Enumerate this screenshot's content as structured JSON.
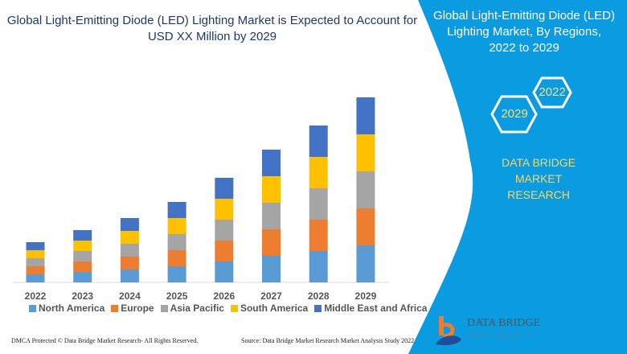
{
  "header": {
    "title_line1": "Global Light-Emitting Diode (LED) Lighting Market is Expected to Account for",
    "title_line2": "USD XX Million by 2029"
  },
  "panel": {
    "title_line1": "Global Light-Emitting Diode (LED)",
    "title_line2": "Lighting Market, By Regions,",
    "title_line3": "2022 to 2029",
    "hex_a": "2022",
    "hex_b": "2029",
    "brand_line1": "DATA BRIDGE MARKET",
    "brand_line2": "RESEARCH",
    "color": "#0a9be0"
  },
  "logo": {
    "name": "DATA BRIDGE",
    "sub": "MARKET RESEARCH"
  },
  "footer": {
    "dmca": "DMCA Protected © Data Bridge Market Research- All Rights Reserved.",
    "source": "Source: Data Bridge Market Research Market Analysis Study 2022"
  },
  "chart_data": {
    "type": "bar",
    "stacked": true,
    "grid": false,
    "legend_placement": "bottom",
    "categories": [
      "2022",
      "2023",
      "2024",
      "2025",
      "2026",
      "2027",
      "2028",
      "2029"
    ],
    "series": [
      {
        "name": "North America",
        "color": "#5b9bd5",
        "values": [
          10,
          13,
          16,
          20,
          26,
          33,
          39,
          46
        ]
      },
      {
        "name": "Europe",
        "color": "#ed7d31",
        "values": [
          10,
          13,
          16,
          20,
          26,
          33,
          39,
          46
        ]
      },
      {
        "name": "Asia Pacific",
        "color": "#a5a5a5",
        "values": [
          10,
          13,
          16,
          20,
          26,
          33,
          39,
          46
        ]
      },
      {
        "name": "South America",
        "color": "#ffc000",
        "values": [
          10,
          13,
          16,
          20,
          26,
          33,
          39,
          46
        ]
      },
      {
        "name": "Middle East and Africa",
        "color": "#4472c4",
        "values": [
          10,
          13,
          16,
          20,
          26,
          33,
          39,
          46
        ]
      }
    ]
  }
}
